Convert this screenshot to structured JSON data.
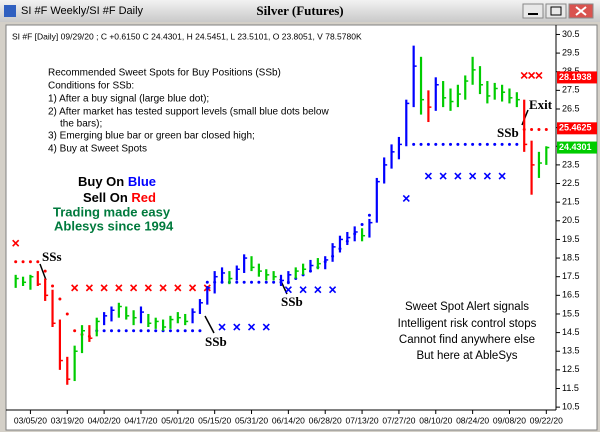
{
  "window": {
    "title": "SI #F Weekly/SI #F Daily"
  },
  "chart_data": {
    "type": "ohlc",
    "title": "Silver (Futures)",
    "info": "SI #F [Daily] 09/29/20 ; C +0.6150 C 24.4301, H 24.5451, L 23.5101, O 23.8051, V 78.5780K",
    "categories": [
      null,
      null,
      "03/05/20",
      null,
      null,
      null,
      null,
      "03/19/20",
      null,
      null,
      null,
      null,
      "04/02/20",
      null,
      null,
      null,
      null,
      "04/17/20",
      null,
      null,
      null,
      null,
      "05/01/20",
      null,
      null,
      null,
      null,
      "05/15/20",
      null,
      null,
      null,
      null,
      "05/31/20",
      null,
      null,
      null,
      null,
      "06/14/20",
      null,
      null,
      null,
      null,
      "06/28/20",
      null,
      null,
      null,
      null,
      "07/13/20",
      null,
      null,
      null,
      null,
      "07/27/20",
      null,
      null,
      null,
      null,
      "08/10/20",
      null,
      null,
      null,
      null,
      "08/24/20",
      null,
      null,
      null,
      null,
      "09/08/20",
      null,
      null,
      null,
      null,
      "09/22/20"
    ],
    "high": [
      17.6,
      17.5,
      17.6,
      17.8,
      17.4,
      16.8,
      15.2,
      13.2,
      13.8,
      14.9,
      14.9,
      15.3,
      15.6,
      15.9,
      16.1,
      15.9,
      15.7,
      15.9,
      15.5,
      15.3,
      15.2,
      15.4,
      15.6,
      15.5,
      15.8,
      16.3,
      17.0,
      17.8,
      18.0,
      17.8,
      18.1,
      18.7,
      18.6,
      18.2,
      17.9,
      17.8,
      17.6,
      17.8,
      18.0,
      18.2,
      18.4,
      18.5,
      18.6,
      19.3,
      19.7,
      19.9,
      20.2,
      20.1,
      20.6,
      22.8,
      23.9,
      24.6,
      25.0,
      27.0,
      29.9,
      29.3,
      27.5,
      28.2,
      28.0,
      27.6,
      27.8,
      28.3,
      29.3,
      28.8,
      28.0,
      27.9,
      27.8,
      27.6,
      27.4,
      27.0,
      24.8,
      24.2,
      24.5
    ],
    "low": [
      16.9,
      17.0,
      16.8,
      17.0,
      16.2,
      14.8,
      12.5,
      11.7,
      11.9,
      13.4,
      14.0,
      14.3,
      14.9,
      15.1,
      15.3,
      15.2,
      14.9,
      15.0,
      14.8,
      14.7,
      14.6,
      14.7,
      15.0,
      14.9,
      15.0,
      15.5,
      16.0,
      16.6,
      17.2,
      17.1,
      17.3,
      17.7,
      17.8,
      17.5,
      17.3,
      17.3,
      17.0,
      17.1,
      17.4,
      17.6,
      17.8,
      17.9,
      17.9,
      18.3,
      18.8,
      19.2,
      19.4,
      19.4,
      19.6,
      20.4,
      22.5,
      23.3,
      23.8,
      24.5,
      26.6,
      26.2,
      25.8,
      26.4,
      26.6,
      26.4,
      26.6,
      27.0,
      27.8,
      27.3,
      26.8,
      27.0,
      26.9,
      26.8,
      26.6,
      24.2,
      21.9,
      22.8,
      23.5
    ],
    "close": [
      17.4,
      17.2,
      17.5,
      17.1,
      16.5,
      15.0,
      13.0,
      12.0,
      13.5,
      14.6,
      14.2,
      15.1,
      15.4,
      15.7,
      15.9,
      15.4,
      15.3,
      15.6,
      15.0,
      15.1,
      14.8,
      15.2,
      15.3,
      15.1,
      15.6,
      16.1,
      16.9,
      17.5,
      17.7,
      17.4,
      17.9,
      18.5,
      18.0,
      17.8,
      17.6,
      17.5,
      17.3,
      17.6,
      17.8,
      17.9,
      18.1,
      18.2,
      18.4,
      19.1,
      19.5,
      19.6,
      19.9,
      19.7,
      20.4,
      22.6,
      23.5,
      24.2,
      24.6,
      26.8,
      28.8,
      27.0,
      26.6,
      27.8,
      27.1,
      26.9,
      27.3,
      28.0,
      28.6,
      27.8,
      27.2,
      27.6,
      27.4,
      27.1,
      27.0,
      24.6,
      23.5,
      23.6,
      24.43
    ],
    "palette": {
      "g": "#00cc00",
      "b": "#0000ff",
      "r": "#ff0000"
    },
    "bar_colors": [
      "g",
      "g",
      "g",
      "r",
      "r",
      "r",
      "r",
      "r",
      "g",
      "g",
      "r",
      "g",
      "b",
      "b",
      "g",
      "g",
      "g",
      "b",
      "g",
      "g",
      "g",
      "g",
      "g",
      "g",
      "b",
      "b",
      "b",
      "b",
      "b",
      "g",
      "b",
      "b",
      "g",
      "g",
      "g",
      "g",
      "b",
      "b",
      "g",
      "g",
      "b",
      "g",
      "b",
      "b",
      "b",
      "b",
      "b",
      "g",
      "b",
      "b",
      "b",
      "b",
      "b",
      "b",
      "b",
      "g",
      "r",
      "b",
      "g",
      "g",
      "g",
      "g",
      "g",
      "g",
      "g",
      "g",
      "g",
      "g",
      "g",
      "r",
      "r",
      "g",
      "g"
    ],
    "support_dots": {
      "color": "#0000ff",
      "values": [
        null,
        null,
        null,
        null,
        null,
        null,
        null,
        null,
        null,
        null,
        null,
        14.6,
        14.6,
        14.6,
        14.6,
        14.6,
        14.6,
        14.6,
        14.6,
        14.6,
        14.6,
        14.6,
        14.6,
        14.6,
        14.6,
        14.6,
        17.2,
        17.2,
        17.2,
        17.2,
        17.2,
        17.2,
        17.2,
        17.2,
        17.2,
        17.2,
        17.2,
        17.2,
        17.4,
        17.6,
        17.8,
        18.0,
        18.3,
        18.6,
        19.0,
        19.4,
        19.8,
        20.3,
        20.8,
        null,
        null,
        null,
        null,
        null,
        24.6,
        24.6,
        24.6,
        24.6,
        24.6,
        24.6,
        24.6,
        24.6,
        24.6,
        24.6,
        24.6,
        24.6,
        24.6,
        24.6,
        24.6,
        null,
        null,
        null,
        null
      ]
    },
    "stop_dots": {
      "color": "#ff0000",
      "values": [
        18.3,
        18.3,
        18.3,
        18.3,
        17.8,
        17.0,
        16.3,
        15.5,
        14.6,
        14.4,
        14.3,
        null,
        null,
        null,
        null,
        null,
        null,
        null,
        null,
        null,
        null,
        null,
        null,
        null,
        null,
        null,
        null,
        null,
        null,
        null,
        null,
        null,
        null,
        null,
        null,
        null,
        null,
        null,
        null,
        null,
        null,
        null,
        null,
        null,
        null,
        null,
        null,
        null,
        null,
        null,
        null,
        null,
        null,
        null,
        null,
        null,
        null,
        null,
        null,
        null,
        null,
        null,
        null,
        null,
        null,
        null,
        null,
        null,
        null,
        25.4,
        25.4,
        25.4,
        25.4
      ]
    },
    "buy_x": {
      "color": "#0000ff",
      "values": [
        null,
        null,
        null,
        null,
        null,
        null,
        null,
        null,
        null,
        null,
        null,
        null,
        null,
        null,
        null,
        null,
        null,
        null,
        null,
        null,
        null,
        null,
        null,
        null,
        null,
        null,
        null,
        null,
        14.8,
        null,
        14.8,
        null,
        14.8,
        null,
        14.8,
        null,
        null,
        16.8,
        null,
        16.8,
        null,
        16.8,
        null,
        16.8,
        null,
        null,
        null,
        null,
        null,
        null,
        null,
        null,
        null,
        21.7,
        null,
        null,
        22.9,
        null,
        22.9,
        null,
        22.9,
        null,
        22.9,
        null,
        22.9,
        null,
        22.9,
        null,
        null,
        null,
        null,
        null,
        null
      ]
    },
    "sell_x": {
      "color": "#ff0000",
      "values": [
        19.3,
        null,
        null,
        null,
        null,
        null,
        null,
        null,
        16.9,
        null,
        16.9,
        null,
        16.9,
        null,
        16.9,
        null,
        16.9,
        null,
        16.9,
        null,
        16.9,
        null,
        16.9,
        null,
        16.9,
        null,
        16.9,
        null,
        null,
        null,
        null,
        null,
        null,
        null,
        null,
        null,
        null,
        null,
        null,
        null,
        null,
        null,
        null,
        null,
        null,
        null,
        null,
        null,
        null,
        null,
        null,
        null,
        null,
        null,
        null,
        null,
        null,
        null,
        null,
        null,
        null,
        null,
        null,
        null,
        null,
        null,
        null,
        null,
        null,
        28.3,
        28.3,
        28.3,
        null
      ]
    },
    "price_labels": [
      {
        "value": 28.1938,
        "color": "#ff0000"
      },
      {
        "value": 25.4625,
        "color": "#ff0000"
      },
      {
        "value": 24.4301,
        "color": "#00cc00"
      }
    ],
    "ylim": [
      10.4,
      30.9
    ],
    "yticks": [
      10.5,
      11.5,
      12.5,
      13.5,
      14.5,
      15.5,
      16.5,
      17.5,
      18.5,
      19.5,
      20.5,
      21.5,
      22.5,
      23.5,
      24.5,
      25.5,
      26.5,
      27.5,
      28.5,
      29.5,
      30.5
    ],
    "notes": [
      "Recommended Sweet Spots for Buy Positions (SSb)",
      "Conditions for SSb:",
      "1) After a buy signal (large blue dot);",
      "2) After market has tested support levels (small blue dots below",
      "the bars);",
      "3) Emerging blue bar or green bar closed high;",
      "4) Buy at Sweet Spots"
    ],
    "slogan": {
      "buy": "Buy On ",
      "buy_color": "Blue",
      "sell": "Sell On ",
      "sell_color": "Red",
      "line3": "Trading made easy",
      "line4": "Ablesys since 1994"
    },
    "signals": [
      "SSs",
      "SSb",
      "SSb",
      "SSb",
      "Exit"
    ],
    "promo": [
      "Sweet Spot Alert signals",
      "Intelligent risk control stops",
      "Cannot find anywhere else",
      "But here at AbleSys"
    ]
  }
}
